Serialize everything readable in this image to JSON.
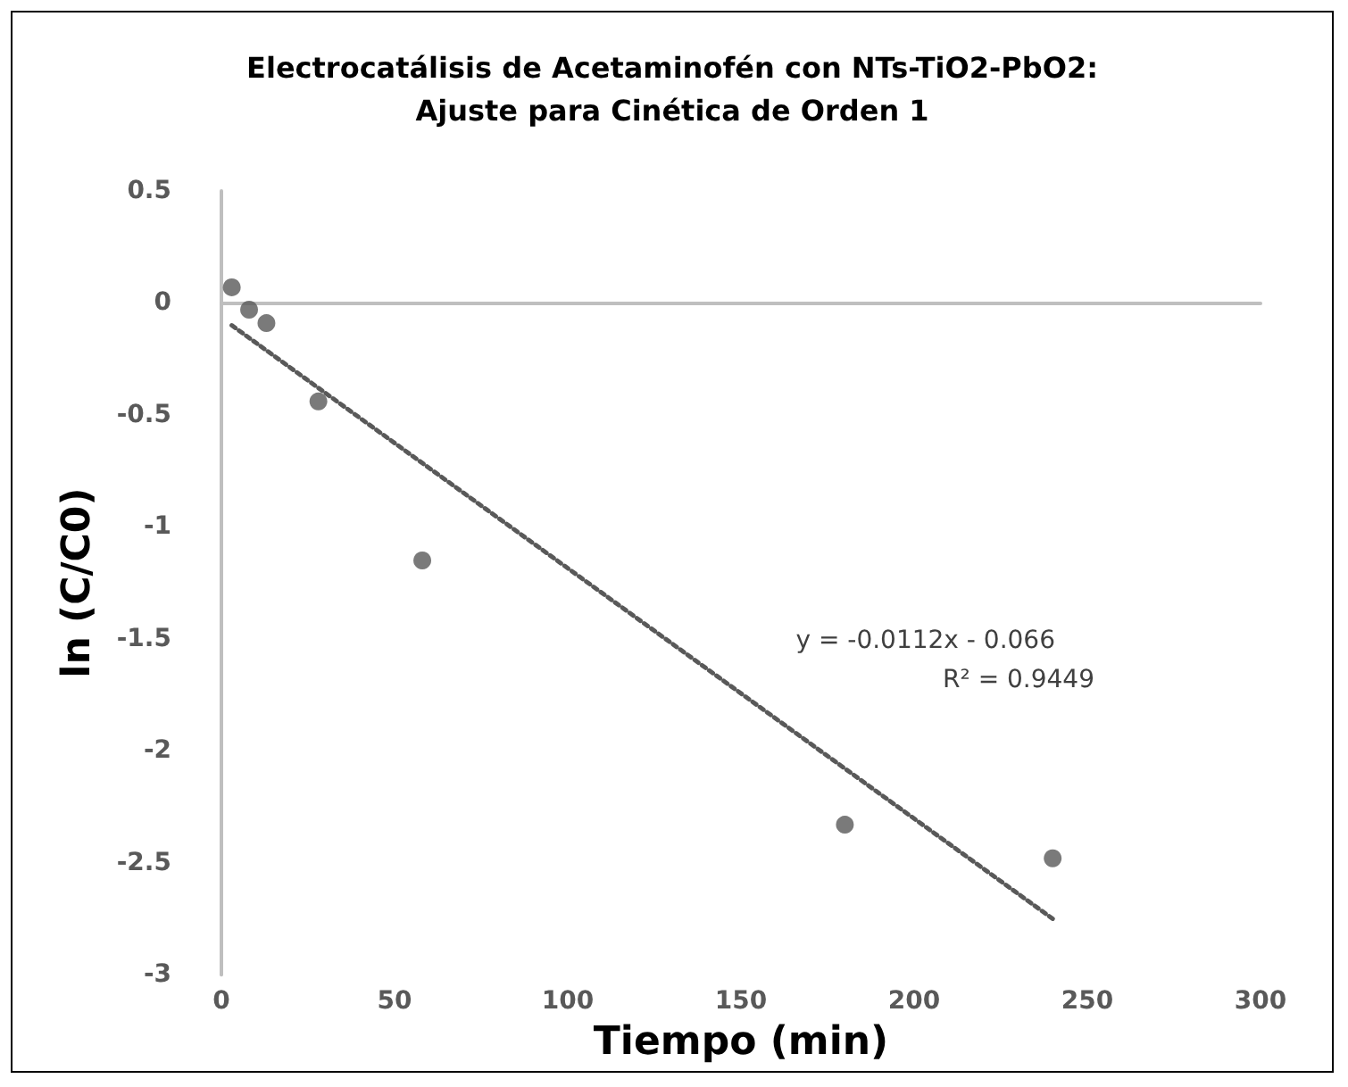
{
  "chart_data": {
    "type": "scatter",
    "title": "Electrocatálisis de Acetaminofén con NTs-TiO2-PbO2:\nAjuste para Cinética de Orden 1",
    "xlabel": "Tiempo (min)",
    "ylabel": "ln (C/C0)",
    "series": [
      {
        "color": "#595959",
        "x": [
          3,
          8,
          13,
          28,
          58,
          180,
          240
        ],
        "values": [
          0.07,
          -0.03,
          -0.09,
          -0.44,
          -1.15,
          -2.33,
          -2.48
        ],
        "marker": "circle"
      },
      {
        "type": "line",
        "color": "#595959",
        "x": [
          3,
          240
        ],
        "values": [
          -0.1,
          -2.75
        ],
        "line_style": "dotted",
        "marker": "none"
      }
    ],
    "annotations": [
      "y = -0.0112x - 0.066",
      "R² = 0.9449"
    ],
    "xlim": [
      0,
      300
    ],
    "xticks": [
      0,
      50,
      100,
      150,
      200,
      250,
      300
    ],
    "ylim": [
      -3,
      0.5
    ],
    "yticks": [
      -3,
      -2.5,
      -2,
      -1.5,
      -1,
      -0.5,
      0,
      0.5
    ],
    "tick_labels": "xy"
  }
}
